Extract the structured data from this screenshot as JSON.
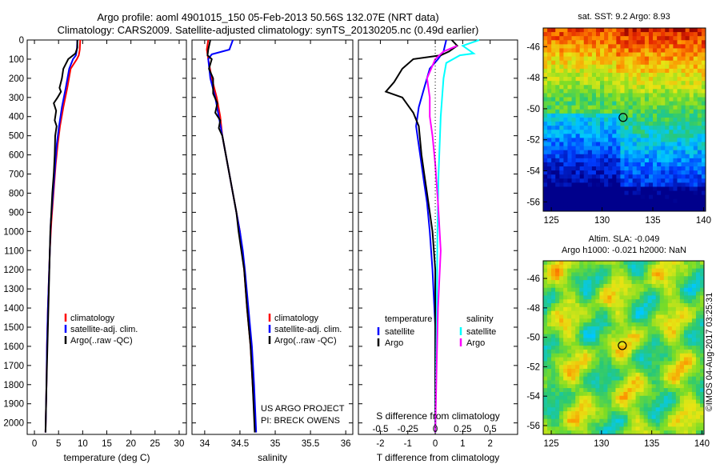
{
  "title_line1": "Argo profile: aoml 4901015_150 05-Feb-2013 50.56S 132.07E (NRT data)",
  "title_line2": "Climatology: CARS2009. Satellite-adjusted climatology: synTS_20130205.nc (0.49d earlier)",
  "colors": {
    "climatology": "#ff0000",
    "satellite": "#0000ff",
    "argo": "#000000",
    "sal_satellite": "#00ffff",
    "sal_argo": "#ff00ff"
  },
  "chart_data": [
    {
      "type": "line",
      "xlabel": "temperature (deg C)",
      "xticks": [
        0,
        5,
        10,
        15,
        20,
        25,
        30
      ],
      "xlim": [
        -1.5,
        31.5
      ],
      "ylim": [
        2060,
        0
      ],
      "yticks": [
        0,
        100,
        200,
        300,
        400,
        500,
        600,
        700,
        800,
        900,
        1000,
        1100,
        1200,
        1300,
        1400,
        1500,
        1600,
        1700,
        1800,
        1900,
        2000
      ],
      "legend": [
        "climatology",
        "satellite-adj. clim.",
        "Argo(..raw -QC)"
      ],
      "series": [
        {
          "name": "climatology",
          "color": "#ff0000",
          "points": [
            [
              9.5,
              0
            ],
            [
              9.4,
              50
            ],
            [
              9.2,
              80
            ],
            [
              8.8,
              100
            ],
            [
              7.5,
              150
            ],
            [
              6.8,
              250
            ],
            [
              6.0,
              350
            ],
            [
              5.3,
              450
            ],
            [
              4.8,
              550
            ],
            [
              4.4,
              650
            ],
            [
              4.1,
              750
            ],
            [
              3.8,
              850
            ],
            [
              3.5,
              950
            ],
            [
              3.2,
              1100
            ],
            [
              3.0,
              1250
            ],
            [
              2.8,
              1400
            ],
            [
              2.6,
              1600
            ],
            [
              2.5,
              1800
            ],
            [
              2.3,
              2050
            ]
          ]
        },
        {
          "name": "satellite-adj. clim.",
          "color": "#0000ff",
          "points": [
            [
              8.9,
              0
            ],
            [
              8.8,
              50
            ],
            [
              8.6,
              80
            ],
            [
              8.0,
              100
            ],
            [
              7.2,
              150
            ],
            [
              6.5,
              250
            ],
            [
              5.7,
              350
            ],
            [
              5.1,
              450
            ],
            [
              4.6,
              550
            ],
            [
              4.3,
              650
            ],
            [
              4.0,
              750
            ],
            [
              3.7,
              850
            ],
            [
              3.4,
              950
            ],
            [
              3.2,
              1100
            ],
            [
              3.0,
              1250
            ],
            [
              2.8,
              1400
            ],
            [
              2.6,
              1600
            ],
            [
              2.5,
              1800
            ],
            [
              2.3,
              2050
            ]
          ]
        },
        {
          "name": "Argo(..raw -QC)",
          "color": "#000000",
          "points": [
            [
              8.9,
              0
            ],
            [
              8.9,
              40
            ],
            [
              8.5,
              70
            ],
            [
              7.0,
              100
            ],
            [
              6.0,
              150
            ],
            [
              5.7,
              200
            ],
            [
              5.2,
              250
            ],
            [
              5.5,
              270
            ],
            [
              4.8,
              300
            ],
            [
              4.0,
              330
            ],
            [
              4.5,
              370
            ],
            [
              4.2,
              420
            ],
            [
              4.6,
              450
            ],
            [
              4.3,
              500
            ],
            [
              4.2,
              600
            ],
            [
              4.0,
              700
            ],
            [
              3.7,
              800
            ],
            [
              3.5,
              900
            ],
            [
              3.3,
              1000
            ],
            [
              3.1,
              1200
            ],
            [
              2.9,
              1400
            ],
            [
              2.7,
              1600
            ],
            [
              2.5,
              1800
            ],
            [
              2.3,
              2050
            ]
          ]
        }
      ]
    },
    {
      "type": "line",
      "xlabel": "salinity",
      "xticks": [
        34,
        34.5,
        35,
        35.5,
        36
      ],
      "xticklabels": [
        "34",
        "34.5",
        "35",
        "35.5",
        "36"
      ],
      "xlim": [
        33.82,
        36.1
      ],
      "ylim": [
        2060,
        0
      ],
      "legend": [
        "climatology",
        "satellite-adj. clim.",
        "Argo(..raw -QC)"
      ],
      "annotation": [
        "US ARGO PROJECT",
        "PI: BRECK OWENS"
      ],
      "series": [
        {
          "name": "climatology",
          "color": "#ff0000",
          "points": [
            [
              34.05,
              0
            ],
            [
              34.03,
              50
            ],
            [
              34.05,
              100
            ],
            [
              34.1,
              200
            ],
            [
              34.17,
              300
            ],
            [
              34.22,
              400
            ],
            [
              34.25,
              500
            ],
            [
              34.3,
              600
            ],
            [
              34.35,
              700
            ],
            [
              34.4,
              800
            ],
            [
              34.45,
              900
            ],
            [
              34.5,
              1000
            ],
            [
              34.53,
              1100
            ],
            [
              34.56,
              1200
            ],
            [
              34.6,
              1400
            ],
            [
              34.65,
              1600
            ],
            [
              34.68,
              1800
            ],
            [
              34.72,
              2050
            ]
          ]
        },
        {
          "name": "satellite-adj. clim.",
          "color": "#0000ff",
          "points": [
            [
              34.4,
              0
            ],
            [
              34.35,
              50
            ],
            [
              34.1,
              75
            ],
            [
              34.05,
              100
            ],
            [
              34.08,
              200
            ],
            [
              34.15,
              300
            ],
            [
              34.2,
              400
            ],
            [
              34.25,
              500
            ],
            [
              34.3,
              600
            ],
            [
              34.35,
              700
            ],
            [
              34.4,
              800
            ],
            [
              34.45,
              900
            ],
            [
              34.5,
              1000
            ],
            [
              34.54,
              1100
            ],
            [
              34.57,
              1200
            ],
            [
              34.62,
              1400
            ],
            [
              34.67,
              1600
            ],
            [
              34.7,
              1800
            ],
            [
              34.73,
              2050
            ]
          ]
        },
        {
          "name": "Argo(..raw -QC)",
          "color": "#000000",
          "points": [
            [
              34.08,
              0
            ],
            [
              34.05,
              50
            ],
            [
              34.04,
              80
            ],
            [
              34.1,
              100
            ],
            [
              34.06,
              150
            ],
            [
              34.12,
              200
            ],
            [
              34.12,
              280
            ],
            [
              34.18,
              330
            ],
            [
              34.15,
              380
            ],
            [
              34.22,
              420
            ],
            [
              34.2,
              460
            ],
            [
              34.25,
              500
            ],
            [
              34.3,
              600
            ],
            [
              34.35,
              700
            ],
            [
              34.4,
              800
            ],
            [
              34.45,
              900
            ],
            [
              34.48,
              1000
            ],
            [
              34.52,
              1100
            ],
            [
              34.56,
              1200
            ],
            [
              34.6,
              1400
            ],
            [
              34.65,
              1600
            ],
            [
              34.68,
              1800
            ],
            [
              34.71,
              2050
            ]
          ]
        }
      ]
    },
    {
      "type": "line",
      "xlabel": "T difference from climatology",
      "xlabel_top": "S difference from climatology",
      "xticks": [
        -2,
        -1,
        0,
        1,
        2
      ],
      "xlim": [
        -2.8,
        3.0
      ],
      "s_ticks": [
        -0.5,
        -0.25,
        0,
        0.25,
        0.5
      ],
      "s_ticklabels": [
        "-0.5",
        "-0.25",
        "0",
        "0.25",
        "0.5"
      ],
      "ylim": [
        2060,
        0
      ],
      "legend": {
        "left_title": "temperature",
        "right_title": "salinity",
        "items": [
          [
            "satellite",
            "satellite"
          ],
          [
            "Argo",
            "Argo"
          ]
        ]
      },
      "series": [
        {
          "name": "temperature satellite",
          "color": "#0000ff",
          "points": [
            [
              0.4,
              0
            ],
            [
              0.3,
              60
            ],
            [
              0.1,
              100
            ],
            [
              -0.2,
              150
            ],
            [
              -0.4,
              250
            ],
            [
              -0.6,
              350
            ],
            [
              -0.7,
              450
            ],
            [
              -0.6,
              550
            ],
            [
              -0.5,
              650
            ],
            [
              -0.4,
              750
            ],
            [
              -0.3,
              850
            ],
            [
              -0.2,
              1000
            ],
            [
              -0.1,
              1200
            ],
            [
              0.0,
              1500
            ],
            [
              0.0,
              2050
            ]
          ]
        },
        {
          "name": "temperature Argo",
          "color": "#000000",
          "points": [
            [
              0.6,
              0
            ],
            [
              0.8,
              30
            ],
            [
              0.5,
              60
            ],
            [
              0.2,
              80
            ],
            [
              -0.8,
              100
            ],
            [
              -1.2,
              150
            ],
            [
              -1.5,
              220
            ],
            [
              -1.8,
              270
            ],
            [
              -1.2,
              300
            ],
            [
              -0.8,
              380
            ],
            [
              -0.6,
              450
            ],
            [
              -0.5,
              600
            ],
            [
              -0.4,
              700
            ],
            [
              -0.3,
              800
            ],
            [
              -0.2,
              900
            ],
            [
              -0.1,
              1000
            ],
            [
              0.0,
              1200
            ],
            [
              0.0,
              1500
            ],
            [
              0.0,
              2050
            ]
          ]
        },
        {
          "name": "salinity satellite",
          "color": "#00ffff",
          "points": [
            [
              1.6,
              0
            ],
            [
              1.0,
              30
            ],
            [
              1.4,
              70
            ],
            [
              0.9,
              80
            ],
            [
              0.4,
              120
            ],
            [
              0.3,
              200
            ],
            [
              0.2,
              400
            ],
            [
              0.12,
              700
            ],
            [
              0.08,
              1000
            ],
            [
              0.05,
              1500
            ],
            [
              0.0,
              2050
            ]
          ]
        },
        {
          "name": "salinity Argo",
          "color": "#ff00ff",
          "points": [
            [
              0.8,
              30
            ],
            [
              0.3,
              60
            ],
            [
              0.0,
              100
            ],
            [
              -0.3,
              200
            ],
            [
              -0.2,
              300
            ],
            [
              -0.2,
              400
            ],
            [
              -0.1,
              500
            ],
            [
              0.0,
              650
            ],
            [
              0.1,
              850
            ],
            [
              0.2,
              1100
            ],
            [
              0.1,
              1400
            ],
            [
              0.05,
              1700
            ],
            [
              0.0,
              2050
            ]
          ]
        }
      ]
    },
    {
      "type": "heatmap",
      "title": "sat. SST: 9.2 Argo: 8.93",
      "xticks": [
        125,
        130,
        135,
        140
      ],
      "xlim": [
        124.2,
        140.2
      ],
      "yticks": [
        -46,
        -48,
        -50,
        -52,
        -54,
        -56
      ],
      "ylim": [
        -56.6,
        -44.8
      ],
      "marker": [
        132.07,
        -50.56
      ]
    },
    {
      "type": "heatmap",
      "title": [
        "Altim. SLA: -0.049",
        "Argo h1000: -0.021 h2000: NaN"
      ],
      "xticks": [
        125,
        130,
        135,
        140
      ],
      "xlim": [
        124.2,
        140.2
      ],
      "yticks": [
        -46,
        -48,
        -50,
        -52,
        -54,
        -56
      ],
      "ylim": [
        -56.6,
        -44.8
      ],
      "marker": [
        132.07,
        -50.56
      ],
      "side_text": "©IMOS 04-Aug-2017 03:25:31"
    }
  ]
}
